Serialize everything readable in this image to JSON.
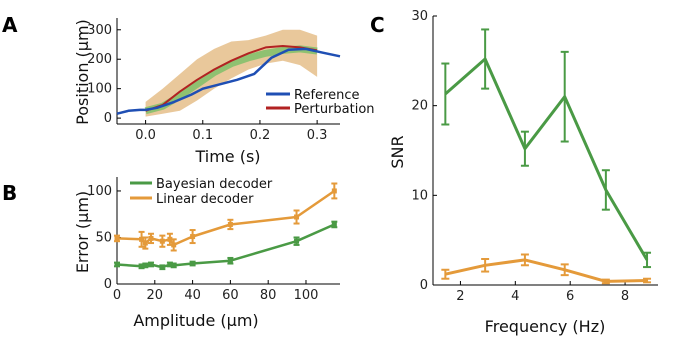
{
  "panel_labels": {
    "a": "A",
    "b": "B",
    "c": "C"
  },
  "colors": {
    "reference": "#1f4fb4",
    "perturbation": "#b22222",
    "band_orange": "#e2b57a",
    "band_green": "#7fbf6a",
    "green": "#4a9a45",
    "orange": "#e49a3a"
  },
  "chart_data": [
    {
      "id": "A",
      "type": "line",
      "xlabel": "Time (s)",
      "ylabel": "Position (μm)",
      "xlim": [
        -0.05,
        0.34
      ],
      "ylim": [
        -20,
        340
      ],
      "xticks": [
        "0.0",
        "0.1",
        "0.2",
        "0.3"
      ],
      "xtick_values": [
        0,
        0.1,
        0.2,
        0.3
      ],
      "yticks": [
        "0",
        "100",
        "200",
        "300"
      ],
      "ytick_values": [
        0,
        100,
        200,
        300
      ],
      "legend": {
        "position": "bottom-right",
        "entries": [
          "Reference",
          "Perturbation"
        ]
      },
      "series": [
        {
          "name": "Reference",
          "color_key": "reference",
          "x": [
            -0.05,
            -0.03,
            -0.01,
            0.0,
            0.02,
            0.05,
            0.08,
            0.1,
            0.13,
            0.16,
            0.19,
            0.22,
            0.25,
            0.28,
            0.31,
            0.34
          ],
          "y": [
            15,
            25,
            28,
            28,
            35,
            55,
            80,
            100,
            115,
            130,
            150,
            205,
            232,
            235,
            222,
            210
          ]
        },
        {
          "name": "Perturbation",
          "color_key": "perturbation",
          "x": [
            0.0,
            0.03,
            0.06,
            0.09,
            0.12,
            0.15,
            0.18,
            0.21,
            0.24,
            0.27,
            0.3
          ],
          "y": [
            25,
            45,
            90,
            130,
            165,
            195,
            220,
            240,
            245,
            240,
            230
          ]
        }
      ],
      "green_mean": {
        "x": [
          0.0,
          0.03,
          0.06,
          0.09,
          0.12,
          0.15,
          0.18,
          0.21,
          0.24,
          0.27,
          0.3
        ],
        "y": [
          25,
          40,
          75,
          115,
          155,
          185,
          205,
          220,
          230,
          235,
          228
        ]
      },
      "orange_band": {
        "x": [
          0.0,
          0.03,
          0.06,
          0.09,
          0.12,
          0.15,
          0.18,
          0.21,
          0.24,
          0.27,
          0.3
        ],
        "upper": [
          55,
          100,
          150,
          200,
          235,
          260,
          265,
          280,
          300,
          300,
          280
        ],
        "lower": [
          5,
          15,
          25,
          60,
          100,
          135,
          165,
          185,
          195,
          180,
          140
        ]
      }
    },
    {
      "id": "B",
      "type": "line",
      "xlabel": "Amplitude (μm)",
      "ylabel": "Error (μm)",
      "xlim": [
        0,
        118
      ],
      "ylim": [
        0,
        115
      ],
      "xticks": [
        "0",
        "20",
        "40",
        "60",
        "80",
        "100"
      ],
      "xtick_values": [
        0,
        20,
        40,
        60,
        80,
        100
      ],
      "yticks": [
        "0",
        "50",
        "100"
      ],
      "ytick_values": [
        0,
        50,
        100
      ],
      "legend": {
        "position": "top-left",
        "entries": [
          "Bayesian decoder",
          "Linear decoder"
        ]
      },
      "series": [
        {
          "name": "Bayesian decoder",
          "color_key": "green",
          "x": [
            0,
            13,
            15,
            18,
            24,
            28,
            30,
            40,
            60,
            95,
            115
          ],
          "y": [
            21,
            19,
            20,
            21,
            18,
            21,
            20,
            22,
            25,
            46,
            64
          ],
          "err": [
            2,
            2,
            2,
            2,
            2,
            2,
            2,
            2,
            3,
            4,
            3
          ]
        },
        {
          "name": "Linear decoder",
          "color_key": "orange",
          "x": [
            0,
            13,
            15,
            18,
            24,
            28,
            30,
            40,
            60,
            95,
            115
          ],
          "y": [
            49,
            48,
            44,
            49,
            46,
            48,
            42,
            51,
            64,
            72,
            100
          ],
          "err": [
            3,
            8,
            6,
            5,
            6,
            6,
            6,
            7,
            5,
            7,
            8
          ]
        }
      ]
    },
    {
      "id": "C",
      "type": "line",
      "xlabel": "Frequency (Hz)",
      "ylabel": "SNR",
      "xlim": [
        1.0,
        9.2
      ],
      "ylim": [
        0,
        30
      ],
      "xticks": [
        "2",
        "4",
        "6",
        "8"
      ],
      "xtick_values": [
        2,
        4,
        6,
        8
      ],
      "yticks": [
        "0",
        "10",
        "20",
        "30"
      ],
      "ytick_values": [
        0,
        10,
        20,
        30
      ],
      "series": [
        {
          "name": "",
          "color_key": "green",
          "x": [
            1.45,
            2.9,
            4.35,
            5.8,
            7.3,
            8.8
          ],
          "y": [
            21.3,
            25.2,
            15.2,
            21.0,
            10.6,
            2.8
          ],
          "err": [
            3.4,
            3.3,
            1.9,
            5.0,
            2.2,
            0.8
          ]
        },
        {
          "name": "",
          "color_key": "orange",
          "x": [
            1.45,
            2.9,
            4.35,
            5.8,
            7.3,
            8.8
          ],
          "y": [
            1.2,
            2.2,
            2.8,
            1.7,
            0.4,
            0.5
          ],
          "err": [
            0.5,
            0.7,
            0.6,
            0.6,
            0.2,
            0.2
          ]
        }
      ]
    }
  ]
}
